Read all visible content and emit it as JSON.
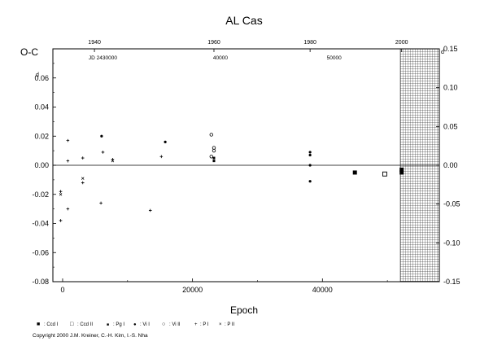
{
  "chart_data": {
    "type": "scatter",
    "title": "AL Cas",
    "ylabel": "O-C",
    "xlabel": "Epoch",
    "ylim": [
      -0.08,
      0.08
    ],
    "xlim": [
      -1500,
      58000
    ],
    "y_ticks": [
      "0.06",
      "0.04",
      "0.02",
      "0.00",
      "-0.02",
      "-0.04",
      "-0.06",
      "-0.08"
    ],
    "y_tick_values": [
      0.06,
      0.04,
      0.02,
      0.0,
      -0.02,
      -0.04,
      -0.06,
      -0.08
    ],
    "x_ticks": [
      "0",
      "20000",
      "40000"
    ],
    "x_tick_values": [
      0,
      20000,
      40000
    ],
    "top_year_ticks": [
      "1940",
      "1960",
      "1980",
      "2000"
    ],
    "top_year_epochs": [
      4900,
      23300,
      38100,
      52200
    ],
    "top_jd_label": "JD 2430000",
    "top_jd_ticks": [
      "40000",
      "50000"
    ],
    "top_jd_epochs": [
      24300,
      41800
    ],
    "right_ticks": [
      "0.15",
      "0.10",
      "0.05",
      "0.00",
      "-0.05",
      "-0.10",
      "-0.15"
    ],
    "right_tick_values": [
      0.15,
      0.1,
      0.05,
      0.0,
      -0.05,
      -0.1,
      -0.15
    ],
    "right_ylim": [
      -0.15,
      0.15
    ],
    "right_corner_label": "d",
    "left_corner_label": "d",
    "grid": false,
    "hatched_region_start_epoch": 52000,
    "series": [
      {
        "name": ": Ccd I",
        "marker": "filled-square",
        "points": [
          [
            45000,
            -0.005
          ],
          [
            52200,
            -0.003
          ],
          [
            52200,
            -0.005
          ]
        ]
      },
      {
        "name": ": Ccd II",
        "marker": "open-square",
        "points": [
          [
            49600,
            -0.006
          ]
        ]
      },
      {
        "name": ": Pg I",
        "marker": "small-filled-square",
        "points": [
          [
            23300,
            0.005
          ],
          [
            23300,
            0.003
          ]
        ]
      },
      {
        "name": ": Vi I",
        "marker": "filled-circle",
        "points": [
          [
            6000,
            0.02
          ],
          [
            15800,
            0.016
          ],
          [
            38100,
            0.009
          ],
          [
            38100,
            0.007
          ],
          [
            38100,
            0.0
          ],
          [
            38100,
            -0.011
          ]
        ]
      },
      {
        "name": ": Vi II",
        "marker": "open-circle",
        "points": [
          [
            22900,
            0.021
          ],
          [
            23300,
            0.012
          ],
          [
            23300,
            0.01
          ],
          [
            22900,
            0.006
          ]
        ]
      },
      {
        "name": ": P I",
        "marker": "plus",
        "points": [
          [
            800,
            0.017
          ],
          [
            800,
            0.003
          ],
          [
            3100,
            0.005
          ],
          [
            6200,
            0.009
          ],
          [
            7700,
            0.004
          ],
          [
            15200,
            0.006
          ],
          [
            -300,
            -0.018
          ],
          [
            800,
            -0.03
          ],
          [
            -300,
            -0.038
          ],
          [
            5900,
            -0.026
          ],
          [
            13500,
            -0.031
          ],
          [
            3100,
            -0.012
          ]
        ]
      },
      {
        "name": ": P II",
        "marker": "cross",
        "points": [
          [
            7700,
            0.003
          ],
          [
            3100,
            -0.009
          ],
          [
            -300,
            -0.02
          ]
        ]
      }
    ]
  },
  "legend_marks": {
    "filled_square": "■",
    "open_square": "□",
    "small_square": "■",
    "filled_circle": "●",
    "open_circle": "○",
    "plus": "+",
    "cross": "×"
  },
  "footer": {
    "copyright": "Copyright 2000 J.M. Kreiner, C.-H. Kim, I.-S. Nha"
  }
}
